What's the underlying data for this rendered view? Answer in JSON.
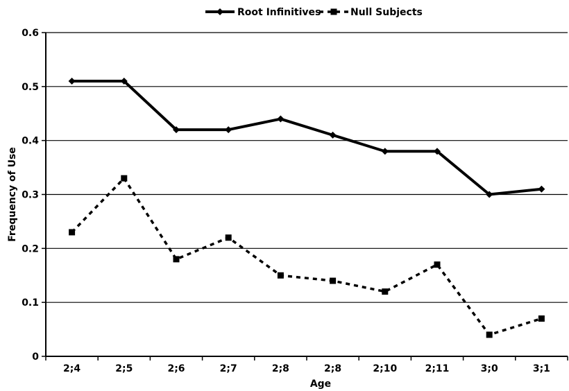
{
  "chart_data": {
    "type": "line",
    "title": "",
    "xlabel": "Age",
    "ylabel": "Frequency of Use",
    "categories": [
      "2;4",
      "2;5",
      "2;6",
      "2;7",
      "2;8",
      "2;8",
      "2;10",
      "2;11",
      "3;0",
      "3;1"
    ],
    "ylim": [
      0,
      0.6
    ],
    "yticks": [
      "0",
      "0.1",
      "0.2",
      "0.3",
      "0.4",
      "0.5",
      "0.6"
    ],
    "grid": "horizontal",
    "legend_position": "top-center",
    "series": [
      {
        "name": "Root Infinitives",
        "style": "solid",
        "marker": "diamond",
        "color": "#000000",
        "values": [
          0.51,
          0.51,
          0.42,
          0.42,
          0.44,
          0.41,
          0.38,
          0.38,
          0.3,
          0.31
        ]
      },
      {
        "name": "Null Subjects",
        "style": "dashed",
        "marker": "square",
        "color": "#000000",
        "values": [
          0.23,
          0.33,
          0.18,
          0.22,
          0.15,
          0.14,
          0.12,
          0.17,
          0.04,
          0.07
        ]
      }
    ]
  }
}
